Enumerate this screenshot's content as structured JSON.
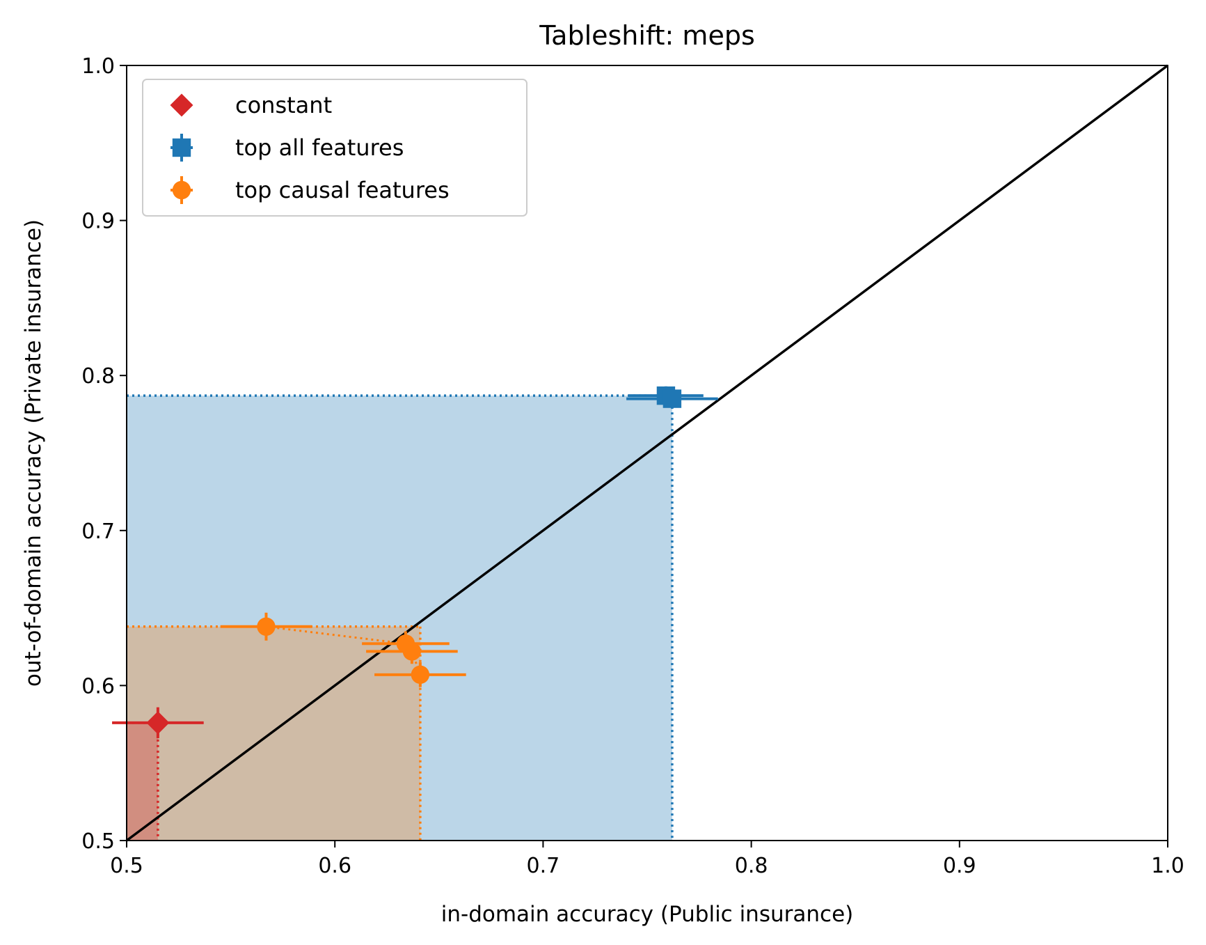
{
  "chart_data": {
    "type": "scatter",
    "title": "Tableshift: meps",
    "xlabel": "in-domain accuracy (Public insurance)",
    "ylabel": "out-of-domain accuracy (Private insurance)",
    "xlim": [
      0.5,
      1.0
    ],
    "ylim": [
      0.5,
      1.0
    ],
    "xticks": [
      "0.5",
      "0.6",
      "0.7",
      "0.8",
      "0.9",
      "1.0"
    ],
    "yticks": [
      "0.5",
      "0.6",
      "0.7",
      "0.8",
      "0.9",
      "1.0"
    ],
    "grid": false,
    "legend_position": "top-left",
    "reference_line": {
      "from": [
        0.5,
        0.5
      ],
      "to": [
        1.0,
        1.0
      ],
      "color": "#000000"
    },
    "series": [
      {
        "name": "constant",
        "marker": "diamond",
        "color": "#d62728",
        "points": [
          {
            "x": 0.515,
            "y": 0.576,
            "xerr": 0.022,
            "yerr": 0.01
          }
        ],
        "frontier_x": 0.515,
        "frontier_y": 0.576
      },
      {
        "name": "top all features",
        "marker": "square",
        "color": "#1f77b4",
        "points": [
          {
            "x": 0.759,
            "y": 0.787,
            "xerr": 0.018,
            "yerr": 0.006
          },
          {
            "x": 0.762,
            "y": 0.785,
            "xerr": 0.022,
            "yerr": 0.006
          }
        ],
        "frontier_x": 0.762,
        "frontier_y": 0.787
      },
      {
        "name": "top causal features",
        "marker": "circle",
        "color": "#ff7f0e",
        "points": [
          {
            "x": 0.567,
            "y": 0.638,
            "xerr": 0.022,
            "yerr": 0.009
          },
          {
            "x": 0.634,
            "y": 0.627,
            "xerr": 0.021,
            "yerr": 0.008
          },
          {
            "x": 0.637,
            "y": 0.622,
            "xerr": 0.022,
            "yerr": 0.008
          },
          {
            "x": 0.641,
            "y": 0.607,
            "xerr": 0.022,
            "yerr": 0.008
          }
        ],
        "frontier_x": 0.641,
        "frontier_y": 0.638
      }
    ]
  }
}
